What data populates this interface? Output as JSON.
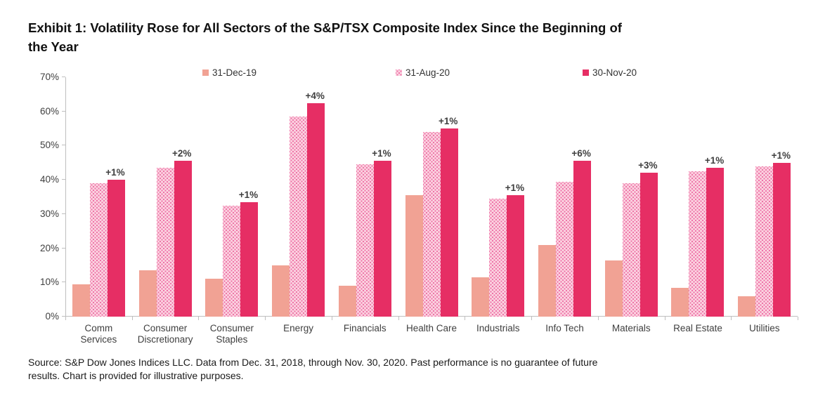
{
  "header": {
    "title_lines": [
      "Exhibit 1: Volatility Rose for All Sectors of the S&P/TSX Composite Index Since the Beginning of",
      "the Year"
    ]
  },
  "footer": {
    "source_lines": [
      "Source: S&P Dow Jones Indices LLC. Data from Dec. 31, 2018, through Nov. 30, 2020. Past performance is no guarantee of future",
      "results. Chart is provided for illustrative purposes."
    ]
  },
  "chart_data": {
    "type": "bar",
    "title": "Exhibit 1: Volatility Rose for All Sectors of the S&P/TSX Composite Index Since the Beginning of the Year",
    "categories": [
      "Comm Services",
      "Consumer Discretionary",
      "Consumer Staples",
      "Energy",
      "Financials",
      "Health Care",
      "Industrials",
      "Info Tech",
      "Materials",
      "Real Estate",
      "Utilities"
    ],
    "series": [
      {
        "name": "31-Dec-19",
        "values": [
          9.5,
          13.5,
          11,
          15,
          9,
          35.5,
          11.5,
          21,
          16.5,
          8.5,
          6
        ]
      },
      {
        "name": "31-Aug-20",
        "values": [
          39,
          43.5,
          32.5,
          58.5,
          44.5,
          54,
          34.5,
          39.5,
          39,
          42.5,
          44
        ]
      },
      {
        "name": "30-Nov-20",
        "values": [
          40,
          45.5,
          33.5,
          62.5,
          45.5,
          55,
          35.5,
          45.5,
          42,
          43.5,
          45
        ]
      }
    ],
    "annotations": [
      "+1%",
      "+2%",
      "+1%",
      "+4%",
      "+1%",
      "+1%",
      "+1%",
      "+6%",
      "+3%",
      "+1%",
      "+1%"
    ],
    "xlabel": "",
    "ylabel": "",
    "ylim": [
      0,
      70
    ],
    "ytick_values": [
      0,
      10,
      20,
      30,
      40,
      50,
      60,
      70
    ],
    "ytick_labels": [
      "0%",
      "10%",
      "20%",
      "30%",
      "40%",
      "50%",
      "60%",
      "70%"
    ],
    "grid": false,
    "legend_position": "top",
    "colors": {
      "dec19": "#F1A294",
      "aug20_base": "#FBD4E1",
      "aug20_dot": "#EE74A8",
      "nov20": "#E62E64",
      "axis": "#BFBFBF",
      "label_text": "#3F3F3F"
    }
  }
}
